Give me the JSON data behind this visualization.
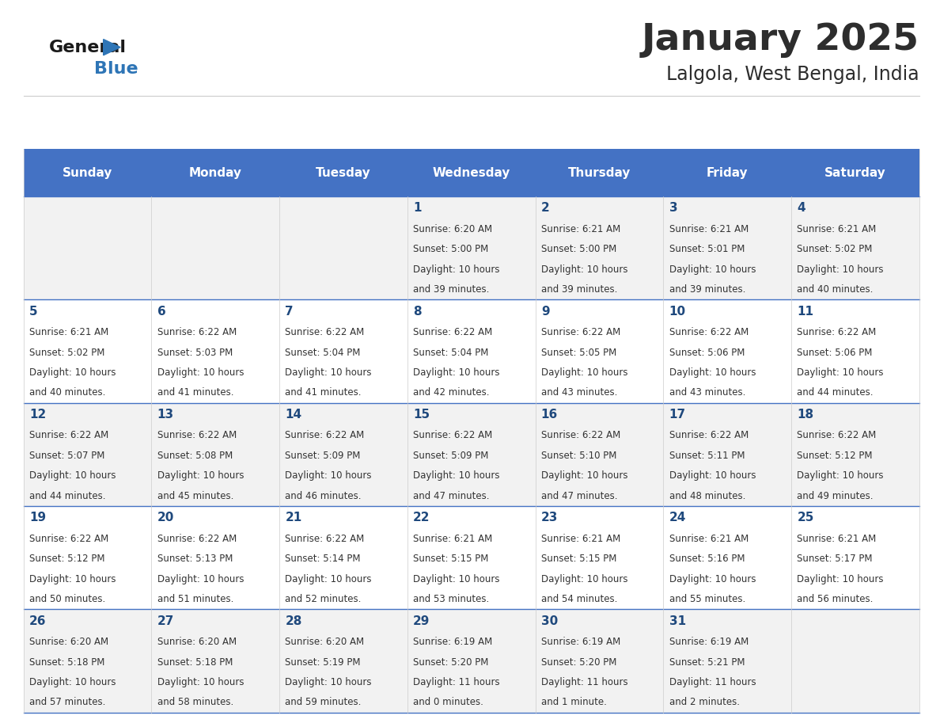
{
  "title": "January 2025",
  "subtitle": "Lalgola, West Bengal, India",
  "header_color": "#4472C4",
  "header_text_color": "#FFFFFF",
  "title_color": "#2d2d2d",
  "subtitle_color": "#2d2d2d",
  "days_of_week": [
    "Sunday",
    "Monday",
    "Tuesday",
    "Wednesday",
    "Thursday",
    "Friday",
    "Saturday"
  ],
  "row_bg_colors": [
    "#F2F2F2",
    "#FFFFFF"
  ],
  "border_color": "#4472C4",
  "text_color": "#333333",
  "num_color": "#1F497D",
  "calendar": [
    [
      {
        "day": null,
        "sunrise": null,
        "sunset": null,
        "daylight_line1": null,
        "daylight_line2": null
      },
      {
        "day": null,
        "sunrise": null,
        "sunset": null,
        "daylight_line1": null,
        "daylight_line2": null
      },
      {
        "day": null,
        "sunrise": null,
        "sunset": null,
        "daylight_line1": null,
        "daylight_line2": null
      },
      {
        "day": 1,
        "sunrise": "6:20 AM",
        "sunset": "5:00 PM",
        "daylight_line1": "Daylight: 10 hours",
        "daylight_line2": "and 39 minutes."
      },
      {
        "day": 2,
        "sunrise": "6:21 AM",
        "sunset": "5:00 PM",
        "daylight_line1": "Daylight: 10 hours",
        "daylight_line2": "and 39 minutes."
      },
      {
        "day": 3,
        "sunrise": "6:21 AM",
        "sunset": "5:01 PM",
        "daylight_line1": "Daylight: 10 hours",
        "daylight_line2": "and 39 minutes."
      },
      {
        "day": 4,
        "sunrise": "6:21 AM",
        "sunset": "5:02 PM",
        "daylight_line1": "Daylight: 10 hours",
        "daylight_line2": "and 40 minutes."
      }
    ],
    [
      {
        "day": 5,
        "sunrise": "6:21 AM",
        "sunset": "5:02 PM",
        "daylight_line1": "Daylight: 10 hours",
        "daylight_line2": "and 40 minutes."
      },
      {
        "day": 6,
        "sunrise": "6:22 AM",
        "sunset": "5:03 PM",
        "daylight_line1": "Daylight: 10 hours",
        "daylight_line2": "and 41 minutes."
      },
      {
        "day": 7,
        "sunrise": "6:22 AM",
        "sunset": "5:04 PM",
        "daylight_line1": "Daylight: 10 hours",
        "daylight_line2": "and 41 minutes."
      },
      {
        "day": 8,
        "sunrise": "6:22 AM",
        "sunset": "5:04 PM",
        "daylight_line1": "Daylight: 10 hours",
        "daylight_line2": "and 42 minutes."
      },
      {
        "day": 9,
        "sunrise": "6:22 AM",
        "sunset": "5:05 PM",
        "daylight_line1": "Daylight: 10 hours",
        "daylight_line2": "and 43 minutes."
      },
      {
        "day": 10,
        "sunrise": "6:22 AM",
        "sunset": "5:06 PM",
        "daylight_line1": "Daylight: 10 hours",
        "daylight_line2": "and 43 minutes."
      },
      {
        "day": 11,
        "sunrise": "6:22 AM",
        "sunset": "5:06 PM",
        "daylight_line1": "Daylight: 10 hours",
        "daylight_line2": "and 44 minutes."
      }
    ],
    [
      {
        "day": 12,
        "sunrise": "6:22 AM",
        "sunset": "5:07 PM",
        "daylight_line1": "Daylight: 10 hours",
        "daylight_line2": "and 44 minutes."
      },
      {
        "day": 13,
        "sunrise": "6:22 AM",
        "sunset": "5:08 PM",
        "daylight_line1": "Daylight: 10 hours",
        "daylight_line2": "and 45 minutes."
      },
      {
        "day": 14,
        "sunrise": "6:22 AM",
        "sunset": "5:09 PM",
        "daylight_line1": "Daylight: 10 hours",
        "daylight_line2": "and 46 minutes."
      },
      {
        "day": 15,
        "sunrise": "6:22 AM",
        "sunset": "5:09 PM",
        "daylight_line1": "Daylight: 10 hours",
        "daylight_line2": "and 47 minutes."
      },
      {
        "day": 16,
        "sunrise": "6:22 AM",
        "sunset": "5:10 PM",
        "daylight_line1": "Daylight: 10 hours",
        "daylight_line2": "and 47 minutes."
      },
      {
        "day": 17,
        "sunrise": "6:22 AM",
        "sunset": "5:11 PM",
        "daylight_line1": "Daylight: 10 hours",
        "daylight_line2": "and 48 minutes."
      },
      {
        "day": 18,
        "sunrise": "6:22 AM",
        "sunset": "5:12 PM",
        "daylight_line1": "Daylight: 10 hours",
        "daylight_line2": "and 49 minutes."
      }
    ],
    [
      {
        "day": 19,
        "sunrise": "6:22 AM",
        "sunset": "5:12 PM",
        "daylight_line1": "Daylight: 10 hours",
        "daylight_line2": "and 50 minutes."
      },
      {
        "day": 20,
        "sunrise": "6:22 AM",
        "sunset": "5:13 PM",
        "daylight_line1": "Daylight: 10 hours",
        "daylight_line2": "and 51 minutes."
      },
      {
        "day": 21,
        "sunrise": "6:22 AM",
        "sunset": "5:14 PM",
        "daylight_line1": "Daylight: 10 hours",
        "daylight_line2": "and 52 minutes."
      },
      {
        "day": 22,
        "sunrise": "6:21 AM",
        "sunset": "5:15 PM",
        "daylight_line1": "Daylight: 10 hours",
        "daylight_line2": "and 53 minutes."
      },
      {
        "day": 23,
        "sunrise": "6:21 AM",
        "sunset": "5:15 PM",
        "daylight_line1": "Daylight: 10 hours",
        "daylight_line2": "and 54 minutes."
      },
      {
        "day": 24,
        "sunrise": "6:21 AM",
        "sunset": "5:16 PM",
        "daylight_line1": "Daylight: 10 hours",
        "daylight_line2": "and 55 minutes."
      },
      {
        "day": 25,
        "sunrise": "6:21 AM",
        "sunset": "5:17 PM",
        "daylight_line1": "Daylight: 10 hours",
        "daylight_line2": "and 56 minutes."
      }
    ],
    [
      {
        "day": 26,
        "sunrise": "6:20 AM",
        "sunset": "5:18 PM",
        "daylight_line1": "Daylight: 10 hours",
        "daylight_line2": "and 57 minutes."
      },
      {
        "day": 27,
        "sunrise": "6:20 AM",
        "sunset": "5:18 PM",
        "daylight_line1": "Daylight: 10 hours",
        "daylight_line2": "and 58 minutes."
      },
      {
        "day": 28,
        "sunrise": "6:20 AM",
        "sunset": "5:19 PM",
        "daylight_line1": "Daylight: 10 hours",
        "daylight_line2": "and 59 minutes."
      },
      {
        "day": 29,
        "sunrise": "6:19 AM",
        "sunset": "5:20 PM",
        "daylight_line1": "Daylight: 11 hours",
        "daylight_line2": "and 0 minutes."
      },
      {
        "day": 30,
        "sunrise": "6:19 AM",
        "sunset": "5:20 PM",
        "daylight_line1": "Daylight: 11 hours",
        "daylight_line2": "and 1 minute."
      },
      {
        "day": 31,
        "sunrise": "6:19 AM",
        "sunset": "5:21 PM",
        "daylight_line1": "Daylight: 11 hours",
        "daylight_line2": "and 2 minutes."
      },
      {
        "day": null,
        "sunrise": null,
        "sunset": null,
        "daylight_line1": null,
        "daylight_line2": null
      }
    ]
  ],
  "fig_width": 11.88,
  "fig_height": 9.18,
  "logo_black": "#1a1a1a",
  "logo_blue": "#2e75b6"
}
